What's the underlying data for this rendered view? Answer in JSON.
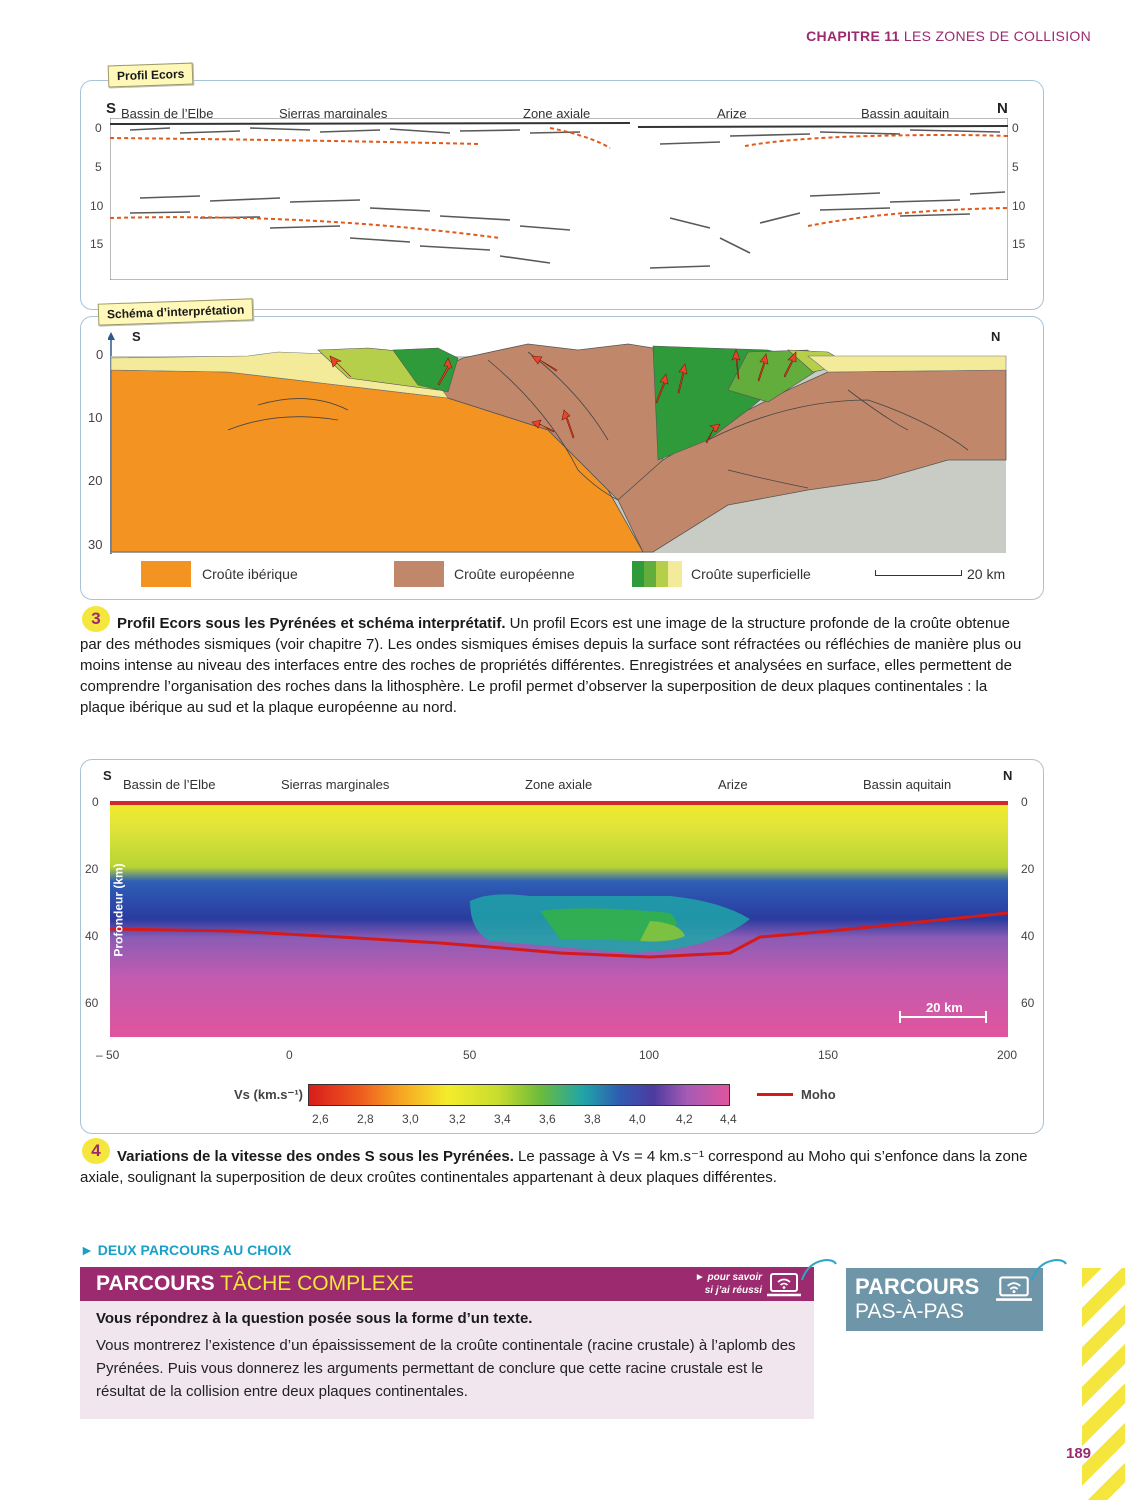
{
  "header": {
    "chapter": "CHAPITRE 11",
    "title": "LES ZONES DE COLLISION"
  },
  "doc3": {
    "tag_profile": "Profil Ecors",
    "tag_schema": "Schéma d’interprétation",
    "south": "S",
    "north": "N",
    "regions": [
      "Bassin de l’Elbe",
      "Sierras marginales",
      "Zone axiale",
      "Arize",
      "Bassin aquitain"
    ],
    "profile_ticks": [
      "0",
      "5",
      "10",
      "15"
    ],
    "schema_ticks": [
      "0",
      "10",
      "20",
      "30"
    ],
    "legend": {
      "iberique": "Croûte ibérique",
      "europeenne": "Croûte européenne",
      "superficielle": "Croûte superficielle",
      "scale": "20 km"
    },
    "colors": {
      "iberique": "#f39321",
      "europeenne": "#c0876a",
      "mantle": "#c9cbc5",
      "superficielle_green": "#2e9a3a",
      "superficielle_light": "#b5cf4a",
      "superficielle_yellow": "#f3ea9a",
      "fault_arrow": "#e8452b"
    },
    "number": "3",
    "caption_title": "Profil Ecors sous les Pyrénées et schéma interprétatif.",
    "caption_text": "Un profil Ecors est une image de la structure profonde de la croûte obtenue par des méthodes sismiques (voir chapitre 7). Les ondes sismiques émises depuis la surface sont réfractées ou réfléchies de manière plus ou moins intense au niveau des interfaces entre des roches de propriétés différentes. Enregistrées et analysées en surface, elles permettent de comprendre l’organisation des roches dans la lithosphère. Le profil permet d’observer la superposition de deux plaques continentales : la plaque ibérique au sud et la plaque européenne au nord."
  },
  "doc4": {
    "south": "S",
    "north": "N",
    "regions": [
      "Bassin de l’Elbe",
      "Sierras marginales",
      "Zone axiale",
      "Arize",
      "Bassin aquitain"
    ],
    "y_ticks": [
      "0",
      "20",
      "40",
      "60"
    ],
    "x_ticks": [
      "– 50",
      "0",
      "50",
      "100",
      "150",
      "200"
    ],
    "ylabel": "Profondeur (km)",
    "scale": "20 km",
    "colorbar_label": "Vs (km.s⁻¹)",
    "colorbar_ticks": [
      "2,6",
      "2,8",
      "3,0",
      "3,2",
      "3,4",
      "3,6",
      "3,8",
      "4,0",
      "4,2",
      "4,4"
    ],
    "moho_label": "Moho",
    "number": "4",
    "caption_title": "Variations de la vitesse des ondes S sous les Pyrénées.",
    "caption_text": "Le passage à Vs = 4 km.s⁻¹ correspond au Moho qui s’enfonce dans la zone axiale, soulignant la superposition de deux croûtes continentales appartenant à deux plaques différentes."
  },
  "parcours": {
    "intro": "► DEUX PARCOURS AU CHOIX",
    "complex_title_a": "PARCOURS",
    "complex_title_b": "TÂCHE COMPLEXE",
    "hint_line1": "► pour savoir",
    "hint_line2": "si j’ai réussi",
    "question": "Vous répondrez à la question posée sous la forme d’un texte.",
    "body": "Vous montrerez l’existence d’un épaississement de la croûte continentale (racine crustale) à l’aplomb des Pyrénées. Puis vous donnerez les arguments permettant de conclure que cette racine crustale est le résultat de la collision entre deux plaques continentales.",
    "step_title_a": "PARCOURS",
    "step_title_b": "PAS-À-PAS",
    "colors": {
      "complex": "#9b2a6e",
      "step": "#6f95a8",
      "body_bg": "#f1e6ee"
    }
  },
  "page_number": "189"
}
